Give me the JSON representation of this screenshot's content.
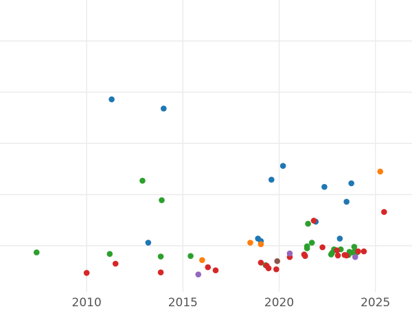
{
  "chart_data": {
    "type": "scatter",
    "title": "",
    "xlabel": "",
    "ylabel": "",
    "xlim": [
      2005.5,
      2026.9
    ],
    "ylim": [
      -0.9,
      4.8
    ],
    "x_ticks": [
      2010,
      2015,
      2020,
      2025
    ],
    "y_gridlines": [
      0,
      1,
      2,
      3,
      4
    ],
    "y_tick_labels_visible": false,
    "grid": true,
    "legend": "none",
    "colors": {
      "blue": "#1f77b4",
      "orange": "#ff7f0e",
      "green": "#2ca02c",
      "red": "#d62728",
      "purple": "#9467bd",
      "brown": "#8c564b"
    },
    "series": [
      {
        "color": "#1f77b4",
        "points": [
          {
            "x": 2011.3,
            "y": 2.86
          },
          {
            "x": 2014.0,
            "y": 2.68
          },
          {
            "x": 2013.2,
            "y": 0.06
          },
          {
            "x": 2018.9,
            "y": 0.14
          },
          {
            "x": 2019.05,
            "y": 0.09
          },
          {
            "x": 2019.6,
            "y": 1.29
          },
          {
            "x": 2020.2,
            "y": 1.56
          },
          {
            "x": 2021.9,
            "y": 0.47
          },
          {
            "x": 2022.35,
            "y": 1.15
          },
          {
            "x": 2023.15,
            "y": 0.14
          },
          {
            "x": 2023.5,
            "y": 0.86
          },
          {
            "x": 2023.75,
            "y": 1.22
          }
        ]
      },
      {
        "color": "#ff7f0e",
        "points": [
          {
            "x": 2016.0,
            "y": -0.28
          },
          {
            "x": 2018.5,
            "y": 0.06
          },
          {
            "x": 2019.05,
            "y": 0.03
          },
          {
            "x": 2025.25,
            "y": 1.45
          }
        ]
      },
      {
        "color": "#2ca02c",
        "points": [
          {
            "x": 2007.4,
            "y": -0.13
          },
          {
            "x": 2011.2,
            "y": -0.16
          },
          {
            "x": 2012.9,
            "y": 1.27
          },
          {
            "x": 2013.9,
            "y": 0.89
          },
          {
            "x": 2013.85,
            "y": -0.21
          },
          {
            "x": 2015.4,
            "y": -0.2
          },
          {
            "x": 2019.3,
            "y": -0.38
          },
          {
            "x": 2021.5,
            "y": 0.43
          },
          {
            "x": 2021.45,
            "y": -0.01
          },
          {
            "x": 2021.45,
            "y": -0.05
          },
          {
            "x": 2021.7,
            "y": 0.06
          },
          {
            "x": 2022.7,
            "y": -0.17
          },
          {
            "x": 2022.85,
            "y": -0.07
          },
          {
            "x": 2022.75,
            "y": -0.14
          },
          {
            "x": 2023.2,
            "y": -0.07
          },
          {
            "x": 2023.6,
            "y": -0.18
          },
          {
            "x": 2023.65,
            "y": -0.12
          },
          {
            "x": 2023.8,
            "y": -0.13
          },
          {
            "x": 2023.9,
            "y": -0.02
          },
          {
            "x": 2023.95,
            "y": -0.1
          },
          {
            "x": 2024.05,
            "y": -0.13
          }
        ]
      },
      {
        "color": "#d62728",
        "points": [
          {
            "x": 2010.0,
            "y": -0.53
          },
          {
            "x": 2011.5,
            "y": -0.35
          },
          {
            "x": 2013.85,
            "y": -0.52
          },
          {
            "x": 2016.3,
            "y": -0.42
          },
          {
            "x": 2016.7,
            "y": -0.48
          },
          {
            "x": 2019.05,
            "y": -0.33
          },
          {
            "x": 2019.35,
            "y": -0.39
          },
          {
            "x": 2019.45,
            "y": -0.44
          },
          {
            "x": 2019.85,
            "y": -0.46
          },
          {
            "x": 2020.55,
            "y": -0.22
          },
          {
            "x": 2021.3,
            "y": -0.17
          },
          {
            "x": 2021.35,
            "y": -0.2
          },
          {
            "x": 2021.8,
            "y": 0.49
          },
          {
            "x": 2022.25,
            "y": -0.03
          },
          {
            "x": 2023.0,
            "y": -0.09
          },
          {
            "x": 2023.05,
            "y": -0.19
          },
          {
            "x": 2023.4,
            "y": -0.18
          },
          {
            "x": 2023.5,
            "y": -0.19
          },
          {
            "x": 2024.1,
            "y": -0.11
          },
          {
            "x": 2024.4,
            "y": -0.11
          },
          {
            "x": 2025.45,
            "y": 0.66
          }
        ]
      },
      {
        "color": "#9467bd",
        "points": [
          {
            "x": 2015.8,
            "y": -0.56
          },
          {
            "x": 2020.55,
            "y": -0.15
          },
          {
            "x": 2023.95,
            "y": -0.22
          }
        ]
      },
      {
        "color": "#8c564b",
        "points": [
          {
            "x": 2019.9,
            "y": -0.3
          }
        ]
      }
    ]
  }
}
